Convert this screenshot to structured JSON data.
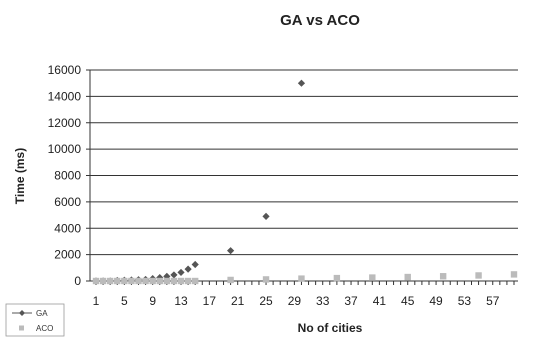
{
  "chart_data": {
    "type": "scatter",
    "title": "GA vs ACO",
    "xlabel": "No of cities",
    "ylabel": "Time (ms)",
    "ylim": [
      0,
      16000
    ],
    "yticks": [
      0,
      2000,
      4000,
      6000,
      8000,
      10000,
      12000,
      14000,
      16000
    ],
    "xlim": [
      1,
      60
    ],
    "xticks": [
      "1",
      "5",
      "9",
      "13",
      "17",
      "21",
      "25",
      "29",
      "33",
      "37",
      "41",
      "45",
      "49",
      "53",
      "57"
    ],
    "grid": true,
    "legend_position": "bottom-left",
    "series": [
      {
        "name": "GA",
        "color": "#555555",
        "marker": "diamond",
        "points": [
          [
            1,
            0
          ],
          [
            2,
            0
          ],
          [
            3,
            0
          ],
          [
            4,
            40
          ],
          [
            5,
            60
          ],
          [
            6,
            80
          ],
          [
            7,
            100
          ],
          [
            8,
            120
          ],
          [
            9,
            180
          ],
          [
            10,
            260
          ],
          [
            11,
            350
          ],
          [
            12,
            460
          ],
          [
            13,
            650
          ],
          [
            14,
            900
          ],
          [
            15,
            1250
          ],
          [
            20,
            2300
          ],
          [
            25,
            4900
          ],
          [
            30,
            15000
          ]
        ]
      },
      {
        "name": "ACO",
        "color": "#bbbbbb",
        "marker": "square",
        "points": [
          [
            1,
            0
          ],
          [
            2,
            0
          ],
          [
            3,
            0
          ],
          [
            4,
            0
          ],
          [
            5,
            0
          ],
          [
            6,
            0
          ],
          [
            7,
            0
          ],
          [
            8,
            0
          ],
          [
            9,
            0
          ],
          [
            10,
            0
          ],
          [
            11,
            0
          ],
          [
            12,
            0
          ],
          [
            13,
            0
          ],
          [
            14,
            0
          ],
          [
            15,
            0
          ],
          [
            20,
            80
          ],
          [
            25,
            120
          ],
          [
            30,
            180
          ],
          [
            35,
            220
          ],
          [
            40,
            260
          ],
          [
            45,
            300
          ],
          [
            50,
            360
          ],
          [
            55,
            420
          ],
          [
            60,
            500
          ]
        ]
      }
    ]
  }
}
